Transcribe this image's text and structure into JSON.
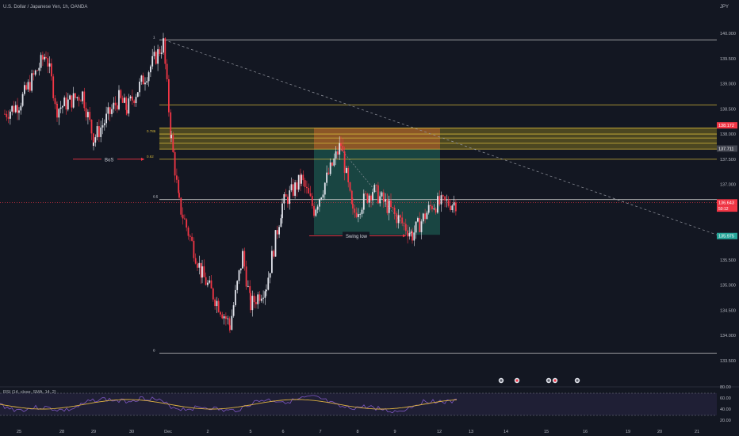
{
  "header": {
    "title": "U.S. Dollar / Japanese Yen, 1h, OANDA",
    "currency": "JPY"
  },
  "chart_data": {
    "type": "candlestick",
    "symbol": "USDJPY",
    "timeframe": "1h",
    "price_axis": {
      "ticks": [
        "140.000",
        "139.500",
        "139.000",
        "138.500",
        "138.000",
        "137.500",
        "137.000",
        "136.500",
        "136.000",
        "135.500",
        "135.000",
        "134.500",
        "134.000",
        "133.500"
      ]
    },
    "time_axis": {
      "ticks": [
        "25",
        "28",
        "29",
        "30",
        "Dec",
        "2",
        "5",
        "6",
        "7",
        "8",
        "9",
        "12",
        "13",
        "14",
        "15",
        "16",
        "19",
        "20",
        "21"
      ]
    },
    "price_labels": [
      {
        "text": "138.172",
        "kind": "zone-top"
      },
      {
        "text": "137.711",
        "kind": "zone-bottom"
      },
      {
        "text": "136.643",
        "kind": "last-price"
      },
      {
        "text": "50:12",
        "kind": "countdown"
      },
      {
        "text": "135.975",
        "kind": "target"
      }
    ],
    "fib_levels": [
      {
        "label": "1",
        "price": 139.87
      },
      {
        "label": "0.786",
        "price": 138.0
      },
      {
        "label": "0.62",
        "price": 137.5
      },
      {
        "label": "0.5",
        "price": 136.7
      },
      {
        "label": "0",
        "price": 133.65
      }
    ],
    "horizontal_lines": [
      138.58,
      138.12,
      137.92,
      137.82,
      137.7
    ],
    "annotations": [
      {
        "text": "BoS"
      },
      {
        "text": "Swing low"
      }
    ],
    "price_path": [
      {
        "x": "Nov 24",
        "y": 138.4
      },
      {
        "x": "Nov 25",
        "y": 138.6
      },
      {
        "x": "Nov 28",
        "y": 139.6
      },
      {
        "x": "Nov 28",
        "y": 138.5
      },
      {
        "x": "Nov 29",
        "y": 138.8
      },
      {
        "x": "Nov 29",
        "y": 137.9
      },
      {
        "x": "Nov 30",
        "y": 138.7
      },
      {
        "x": "Nov 30",
        "y": 138.5
      },
      {
        "x": "Nov 30",
        "y": 139.8
      },
      {
        "x": "Dec 1",
        "y": 137.9
      },
      {
        "x": "Dec 1",
        "y": 136.6
      },
      {
        "x": "Dec 2",
        "y": 135.2
      },
      {
        "x": "Dec 2",
        "y": 134.2
      },
      {
        "x": "Dec 2",
        "y": 135.6
      },
      {
        "x": "Dec 5",
        "y": 134.6
      },
      {
        "x": "Dec 5",
        "y": 135.0
      },
      {
        "x": "Dec 6",
        "y": 136.6
      },
      {
        "x": "Dec 6",
        "y": 137.1
      },
      {
        "x": "Dec 7",
        "y": 136.5
      },
      {
        "x": "Dec 7",
        "y": 137.8
      },
      {
        "x": "Dec 8",
        "y": 136.4
      },
      {
        "x": "Dec 8",
        "y": 136.9
      },
      {
        "x": "Dec 9",
        "y": 136.4
      },
      {
        "x": "Dec 9",
        "y": 136.0
      },
      {
        "x": "Dec 12",
        "y": 136.6
      },
      {
        "x": "Dec 12",
        "y": 136.64
      }
    ],
    "rsi": {
      "label": "RSI (14, close, SMA, 14, 2)",
      "ticks": [
        "80.00",
        "60.00",
        "40.00",
        "20.00"
      ],
      "levels": [
        70,
        30
      ]
    }
  }
}
